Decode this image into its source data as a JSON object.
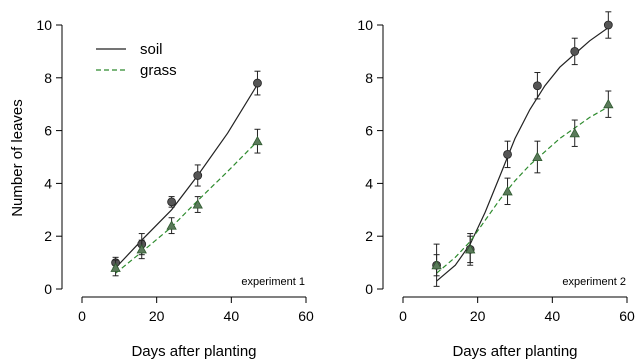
{
  "chart_data": [
    {
      "type": "line",
      "panel_label": "experiment 1",
      "xlabel": "Days after planting",
      "ylabel": "Number of leaves",
      "xlim": [
        0,
        60
      ],
      "ylim": [
        0,
        10
      ],
      "xticks": [
        0,
        20,
        40,
        60
      ],
      "yticks": [
        0,
        2,
        4,
        6,
        8,
        10
      ],
      "legend": {
        "placement": "top-left",
        "entries": [
          "soil",
          "grass"
        ]
      },
      "series": [
        {
          "name": "soil",
          "color": "#222222",
          "line_style": "solid",
          "marker": "circle",
          "points": [
            {
              "x": 9,
              "y": 1.0,
              "err": 0.2
            },
            {
              "x": 16,
              "y": 1.7,
              "err": 0.4
            },
            {
              "x": 24,
              "y": 3.3,
              "err": 0.2
            },
            {
              "x": 31,
              "y": 4.3,
              "err": 0.4
            },
            {
              "x": 47,
              "y": 7.8,
              "err": 0.45
            }
          ],
          "fit": [
            [
              9,
              0.8
            ],
            [
              16,
              1.85
            ],
            [
              24,
              3.0
            ],
            [
              31,
              4.3
            ],
            [
              39,
              5.9
            ],
            [
              47,
              7.75
            ]
          ]
        },
        {
          "name": "grass",
          "color": "#2e8b2e",
          "line_style": "dashed",
          "marker": "triangle",
          "points": [
            {
              "x": 9,
              "y": 0.8,
              "err": 0.3
            },
            {
              "x": 16,
              "y": 1.5,
              "err": 0.35
            },
            {
              "x": 24,
              "y": 2.4,
              "err": 0.3
            },
            {
              "x": 31,
              "y": 3.2,
              "err": 0.3
            },
            {
              "x": 47,
              "y": 5.6,
              "err": 0.45
            }
          ],
          "fit": [
            [
              9,
              0.6
            ],
            [
              16,
              1.4
            ],
            [
              24,
              2.35
            ],
            [
              31,
              3.35
            ],
            [
              39,
              4.45
            ],
            [
              47,
              5.6
            ]
          ]
        }
      ]
    },
    {
      "type": "line",
      "panel_label": "experiment 2",
      "xlabel": "Days after planting",
      "ylabel": "",
      "xlim": [
        0,
        60
      ],
      "ylim": [
        0,
        10
      ],
      "xticks": [
        0,
        20,
        40,
        60
      ],
      "yticks": [
        0,
        2,
        4,
        6,
        8,
        10
      ],
      "series": [
        {
          "name": "soil",
          "color": "#222222",
          "line_style": "solid",
          "marker": "circle",
          "points": [
            {
              "x": 9,
              "y": 0.9,
              "err": 0.8
            },
            {
              "x": 18,
              "y": 1.5,
              "err": 0.6
            },
            {
              "x": 28,
              "y": 5.1,
              "err": 0.5
            },
            {
              "x": 36,
              "y": 7.7,
              "err": 0.5
            },
            {
              "x": 46,
              "y": 9.0,
              "err": 0.5
            },
            {
              "x": 55,
              "y": 10.0,
              "err": 0.5
            }
          ],
          "fit": [
            [
              9,
              0.3
            ],
            [
              14,
              0.9
            ],
            [
              18,
              1.7
            ],
            [
              22,
              2.9
            ],
            [
              26,
              4.3
            ],
            [
              30,
              5.7
            ],
            [
              34,
              6.8
            ],
            [
              38,
              7.7
            ],
            [
              42,
              8.4
            ],
            [
              46,
              8.9
            ],
            [
              50,
              9.4
            ],
            [
              55,
              9.9
            ]
          ]
        },
        {
          "name": "grass",
          "color": "#2e8b2e",
          "line_style": "dashed",
          "marker": "triangle",
          "points": [
            {
              "x": 9,
              "y": 0.9,
              "err": 0.4
            },
            {
              "x": 18,
              "y": 1.5,
              "err": 0.5
            },
            {
              "x": 28,
              "y": 3.7,
              "err": 0.5
            },
            {
              "x": 36,
              "y": 5.0,
              "err": 0.6
            },
            {
              "x": 46,
              "y": 5.9,
              "err": 0.5
            },
            {
              "x": 55,
              "y": 7.0,
              "err": 0.5
            }
          ],
          "fit": [
            [
              9,
              0.6
            ],
            [
              14,
              1.2
            ],
            [
              18,
              1.8
            ],
            [
              22,
              2.6
            ],
            [
              26,
              3.4
            ],
            [
              30,
              4.1
            ],
            [
              34,
              4.7
            ],
            [
              38,
              5.2
            ],
            [
              42,
              5.7
            ],
            [
              46,
              6.1
            ],
            [
              50,
              6.5
            ],
            [
              55,
              6.9
            ]
          ]
        }
      ]
    }
  ]
}
